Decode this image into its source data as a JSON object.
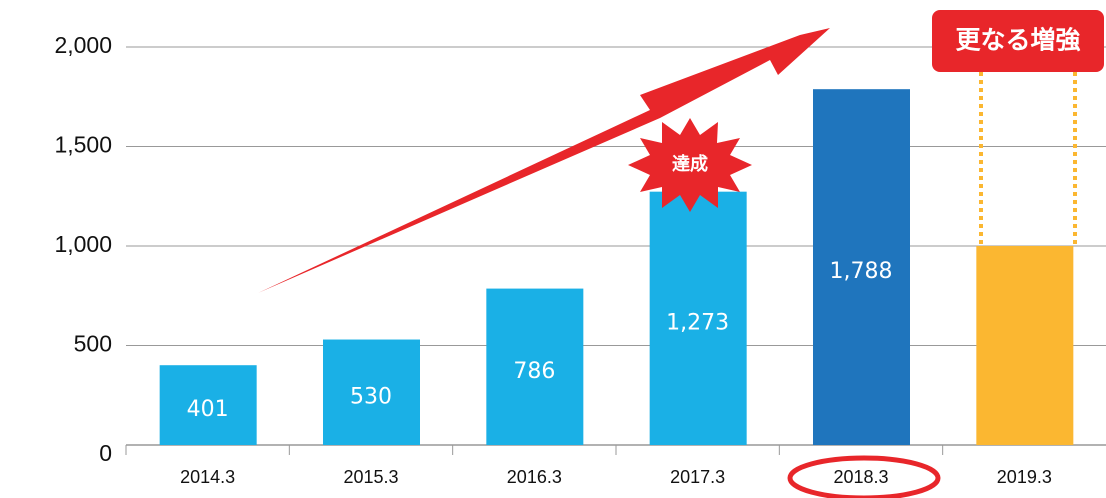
{
  "chart_data": {
    "type": "bar",
    "categories": [
      "2014.3",
      "2015.3",
      "2016.3",
      "2017.3",
      "2018.3",
      "2019.3"
    ],
    "values": [
      401,
      530,
      786,
      1273,
      1788,
      1000
    ],
    "value_labels": [
      "401",
      "530",
      "786",
      "1,273",
      "1,788",
      null
    ],
    "colors": [
      "#1ab0e6",
      "#1ab0e6",
      "#1ab0e6",
      "#1ab0e6",
      "#1f75bd",
      "#fbb731"
    ],
    "ylim": [
      0,
      2000
    ],
    "yticks": [
      0,
      500,
      {
        "value": 1000,
        "label": "1,000"
      },
      {
        "value": 1500,
        "label": "1,500"
      },
      {
        "value": 2000,
        "label": "2,000"
      }
    ],
    "grid": true,
    "annotations": {
      "achieved": "達成",
      "further": "更なる増強"
    }
  }
}
